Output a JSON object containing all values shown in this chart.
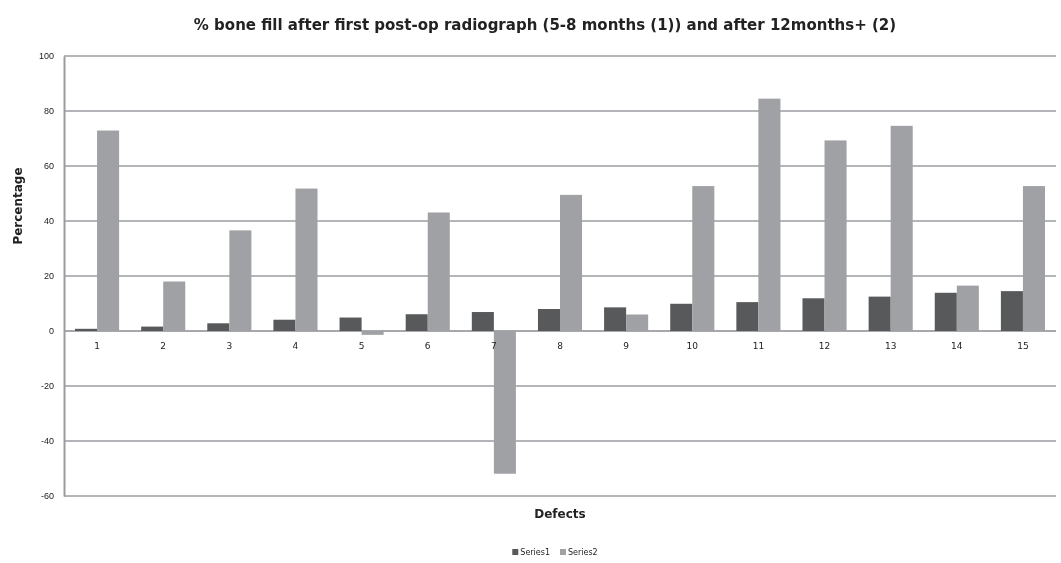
{
  "chart_data": {
    "type": "bar",
    "title": "% bone fill after first post-op radiograph (5-8 months (1)) and after 12months+ (2)",
    "xlabel": "Defects",
    "ylabel": "Percentage",
    "categories": [
      "1",
      "2",
      "3",
      "4",
      "5",
      "6",
      "7",
      "8",
      "9",
      "10",
      "11",
      "12",
      "13",
      "14",
      "15"
    ],
    "series": [
      {
        "name": "Series1",
        "color": "#58595b",
        "values": [
          0.8,
          1.6,
          2.8,
          4.1,
          4.9,
          6.1,
          6.9,
          8,
          8.6,
          9.9,
          10.5,
          11.9,
          12.5,
          13.9,
          14.5
        ]
      },
      {
        "name": "Series2",
        "color": "#a0a1a5",
        "values": [
          72.9,
          18,
          36.6,
          51.8,
          -1.4,
          43.1,
          -51.9,
          49.5,
          6,
          52.7,
          84.5,
          69.3,
          74.6,
          16.5,
          52.7
        ]
      }
    ],
    "ylim": [
      -60,
      100
    ],
    "yticks": [
      -60,
      -40,
      -20,
      0,
      20,
      40,
      60,
      80,
      100
    ],
    "grid": "y",
    "legend": "bottom"
  }
}
